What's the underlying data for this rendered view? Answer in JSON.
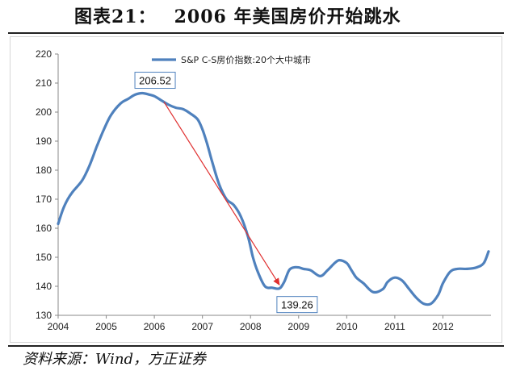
{
  "header": {
    "label": "图表21：",
    "text": "2006 年美国房价开始跳水"
  },
  "source": "资料来源：Wind，方正证券",
  "chart_data": {
    "type": "line",
    "title": "2006 年美国房价开始跳水",
    "xlabel": "",
    "ylabel": "",
    "xlim": [
      2004,
      2013
    ],
    "ylim": [
      130,
      220
    ],
    "x_ticks": [
      "2004",
      "2005",
      "2006",
      "2007",
      "2008",
      "2009",
      "2010",
      "2011",
      "2012"
    ],
    "y_ticks": [
      "130",
      "140",
      "150",
      "160",
      "170",
      "180",
      "190",
      "200",
      "210",
      "220"
    ],
    "legend": {
      "placement": "top-center"
    },
    "series": [
      {
        "name": "S&P C-S房价指数:20个大中城市",
        "color": "#4f81bd",
        "x": [
          2004.0,
          2004.1,
          2004.2,
          2004.3,
          2004.5,
          2004.65,
          2004.8,
          2004.95,
          2005.1,
          2005.3,
          2005.45,
          2005.6,
          2005.75,
          2005.9,
          2006.0,
          2006.15,
          2006.3,
          2006.45,
          2006.6,
          2006.75,
          2006.9,
          2007.0,
          2007.1,
          2007.2,
          2007.35,
          2007.5,
          2007.65,
          2007.8,
          2007.95,
          2008.05,
          2008.15,
          2008.3,
          2008.45,
          2008.6,
          2008.7,
          2008.8,
          2008.9,
          2009.0,
          2009.1,
          2009.25,
          2009.45,
          2009.6,
          2009.75,
          2009.85,
          2010.0,
          2010.1,
          2010.2,
          2010.35,
          2010.55,
          2010.75,
          2010.85,
          2011.0,
          2011.15,
          2011.3,
          2011.45,
          2011.6,
          2011.75,
          2011.9,
          2012.0,
          2012.15,
          2012.3,
          2012.5,
          2012.7,
          2012.85,
          2012.95
        ],
        "values": [
          161.5,
          166.5,
          170,
          172.5,
          176.5,
          181.5,
          188,
          194,
          199,
          203,
          204.5,
          206,
          206.52,
          206,
          205.5,
          204,
          202.5,
          201.5,
          201,
          199.5,
          197.5,
          194,
          189,
          183,
          175,
          170,
          168,
          164,
          157,
          150,
          145,
          140,
          139.5,
          139.26,
          141.5,
          145.5,
          146.5,
          146.5,
          146,
          145.5,
          143.5,
          145.5,
          148,
          149,
          148,
          145.5,
          143,
          141,
          138,
          139,
          141.5,
          143,
          142,
          139,
          136,
          134,
          134,
          137,
          141,
          145,
          146,
          146,
          146.5,
          148,
          152
        ]
      }
    ],
    "annotations": [
      {
        "type": "label",
        "x": 2006.15,
        "y": 206.52,
        "text": "206.52"
      },
      {
        "type": "label",
        "x": 2008.75,
        "y": 139.26,
        "text": "139.26"
      },
      {
        "type": "arrow",
        "from": [
          2006.2,
          203.5
        ],
        "to": [
          2008.6,
          140.5
        ],
        "color": "#e03030"
      }
    ]
  }
}
